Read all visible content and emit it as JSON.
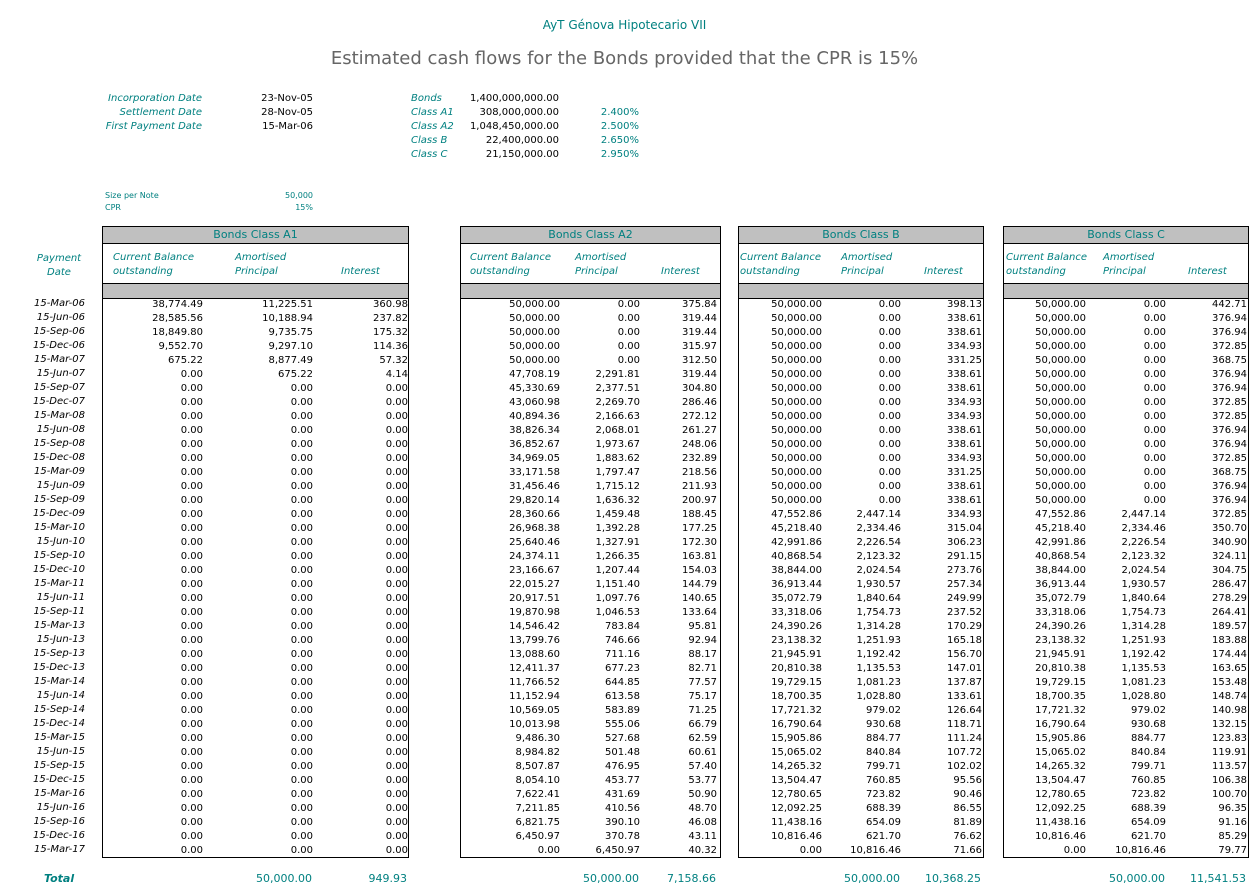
{
  "header": {
    "title": "AyT Génova Hipotecario VII",
    "subtitle": "Estimated cash flows for the Bonds provided that the CPR is 15%"
  },
  "info": {
    "dates": [
      {
        "label": "Incorporation Date",
        "value": "23-Nov-05"
      },
      {
        "label": "Settlement Date",
        "value": "28-Nov-05"
      },
      {
        "label": "First Payment Date",
        "value": "15-Mar-06"
      }
    ],
    "bonds": [
      {
        "label": "Bonds",
        "amount": "1,400,000,000.00",
        "rate": ""
      },
      {
        "label": "Class A1",
        "amount": "308,000,000.00",
        "rate": "2.400%"
      },
      {
        "label": "Class A2",
        "amount": "1,048,450,000.00",
        "rate": "2.500%"
      },
      {
        "label": "Class B",
        "amount": "22,400,000.00",
        "rate": "2.650%"
      },
      {
        "label": "Class C",
        "amount": "21,150,000.00",
        "rate": "2.950%"
      }
    ],
    "size_per_note_label": "Size per Note",
    "size_per_note": "50,000",
    "cpr_label": "CPR",
    "cpr": "15%"
  },
  "payment_date_header": [
    "Payment",
    "Date"
  ],
  "column_headers": {
    "balance": [
      "Current Balance",
      "outstanding"
    ],
    "amortised": [
      "Amortised",
      "Principal"
    ],
    "interest": "Interest"
  },
  "total_label": "Total",
  "dates": [
    "15-Mar-06",
    "15-Jun-06",
    "15-Sep-06",
    "15-Dec-06",
    "15-Mar-07",
    "15-Jun-07",
    "15-Sep-07",
    "15-Dec-07",
    "15-Mar-08",
    "15-Jun-08",
    "15-Sep-08",
    "15-Dec-08",
    "15-Mar-09",
    "15-Jun-09",
    "15-Sep-09",
    "15-Dec-09",
    "15-Mar-10",
    "15-Jun-10",
    "15-Sep-10",
    "15-Dec-10",
    "15-Mar-11",
    "15-Jun-11",
    "15-Sep-11",
    "15-Mar-13",
    "15-Jun-13",
    "15-Sep-13",
    "15-Dec-13",
    "15-Mar-14",
    "15-Jun-14",
    "15-Sep-14",
    "15-Dec-14",
    "15-Mar-15",
    "15-Jun-15",
    "15-Sep-15",
    "15-Dec-15",
    "15-Mar-16",
    "15-Jun-16",
    "15-Sep-16",
    "15-Dec-16",
    "15-Mar-17"
  ],
  "tables": [
    {
      "title": "Bonds Class A1",
      "balance": [
        "38,774.49",
        "28,585.56",
        "18,849.80",
        "9,552.70",
        "675.22",
        "0.00",
        "0.00",
        "0.00",
        "0.00",
        "0.00",
        "0.00",
        "0.00",
        "0.00",
        "0.00",
        "0.00",
        "0.00",
        "0.00",
        "0.00",
        "0.00",
        "0.00",
        "0.00",
        "0.00",
        "0.00",
        "0.00",
        "0.00",
        "0.00",
        "0.00",
        "0.00",
        "0.00",
        "0.00",
        "0.00",
        "0.00",
        "0.00",
        "0.00",
        "0.00",
        "0.00",
        "0.00",
        "0.00",
        "0.00",
        "0.00"
      ],
      "amortised": [
        "11,225.51",
        "10,188.94",
        "9,735.75",
        "9,297.10",
        "8,877.49",
        "675.22",
        "0.00",
        "0.00",
        "0.00",
        "0.00",
        "0.00",
        "0.00",
        "0.00",
        "0.00",
        "0.00",
        "0.00",
        "0.00",
        "0.00",
        "0.00",
        "0.00",
        "0.00",
        "0.00",
        "0.00",
        "0.00",
        "0.00",
        "0.00",
        "0.00",
        "0.00",
        "0.00",
        "0.00",
        "0.00",
        "0.00",
        "0.00",
        "0.00",
        "0.00",
        "0.00",
        "0.00",
        "0.00",
        "0.00",
        "0.00"
      ],
      "interest": [
        "360.98",
        "237.82",
        "175.32",
        "114.36",
        "57.32",
        "4.14",
        "0.00",
        "0.00",
        "0.00",
        "0.00",
        "0.00",
        "0.00",
        "0.00",
        "0.00",
        "0.00",
        "0.00",
        "0.00",
        "0.00",
        "0.00",
        "0.00",
        "0.00",
        "0.00",
        "0.00",
        "0.00",
        "0.00",
        "0.00",
        "0.00",
        "0.00",
        "0.00",
        "0.00",
        "0.00",
        "0.00",
        "0.00",
        "0.00",
        "0.00",
        "0.00",
        "0.00",
        "0.00",
        "0.00",
        "0.00"
      ],
      "total_amortised": "50,000.00",
      "total_interest": "949.93"
    },
    {
      "title": "Bonds Class A2",
      "balance": [
        "50,000.00",
        "50,000.00",
        "50,000.00",
        "50,000.00",
        "50,000.00",
        "47,708.19",
        "45,330.69",
        "43,060.98",
        "40,894.36",
        "38,826.34",
        "36,852.67",
        "34,969.05",
        "33,171.58",
        "31,456.46",
        "29,820.14",
        "28,360.66",
        "26,968.38",
        "25,640.46",
        "24,374.11",
        "23,166.67",
        "22,015.27",
        "20,917.51",
        "19,870.98",
        "14,546.42",
        "13,799.76",
        "13,088.60",
        "12,411.37",
        "11,766.52",
        "11,152.94",
        "10,569.05",
        "10,013.98",
        "9,486.30",
        "8,984.82",
        "8,507.87",
        "8,054.10",
        "7,622.41",
        "7,211.85",
        "6,821.75",
        "6,450.97",
        "0.00"
      ],
      "amortised": [
        "0.00",
        "0.00",
        "0.00",
        "0.00",
        "0.00",
        "2,291.81",
        "2,377.51",
        "2,269.70",
        "2,166.63",
        "2,068.01",
        "1,973.67",
        "1,883.62",
        "1,797.47",
        "1,715.12",
        "1,636.32",
        "1,459.48",
        "1,392.28",
        "1,327.91",
        "1,266.35",
        "1,207.44",
        "1,151.40",
        "1,097.76",
        "1,046.53",
        "783.84",
        "746.66",
        "711.16",
        "677.23",
        "644.85",
        "613.58",
        "583.89",
        "555.06",
        "527.68",
        "501.48",
        "476.95",
        "453.77",
        "431.69",
        "410.56",
        "390.10",
        "370.78",
        "6,450.97"
      ],
      "interest": [
        "375.84",
        "319.44",
        "319.44",
        "315.97",
        "312.50",
        "319.44",
        "304.80",
        "286.46",
        "272.12",
        "261.27",
        "248.06",
        "232.89",
        "218.56",
        "211.93",
        "200.97",
        "188.45",
        "177.25",
        "172.30",
        "163.81",
        "154.03",
        "144.79",
        "140.65",
        "133.64",
        "95.81",
        "92.94",
        "88.17",
        "82.71",
        "77.57",
        "75.17",
        "71.25",
        "66.79",
        "62.59",
        "60.61",
        "57.40",
        "53.77",
        "50.90",
        "48.70",
        "46.08",
        "43.11",
        "40.32"
      ],
      "total_amortised": "50,000.00",
      "total_interest": "7,158.66"
    },
    {
      "title": "Bonds Class B",
      "balance": [
        "50,000.00",
        "50,000.00",
        "50,000.00",
        "50,000.00",
        "50,000.00",
        "50,000.00",
        "50,000.00",
        "50,000.00",
        "50,000.00",
        "50,000.00",
        "50,000.00",
        "50,000.00",
        "50,000.00",
        "50,000.00",
        "50,000.00",
        "47,552.86",
        "45,218.40",
        "42,991.86",
        "40,868.54",
        "38,844.00",
        "36,913.44",
        "35,072.79",
        "33,318.06",
        "24,390.26",
        "23,138.32",
        "21,945.91",
        "20,810.38",
        "19,729.15",
        "18,700.35",
        "17,721.32",
        "16,790.64",
        "15,905.86",
        "15,065.02",
        "14,265.32",
        "13,504.47",
        "12,780.65",
        "12,092.25",
        "11,438.16",
        "10,816.46",
        "0.00"
      ],
      "amortised": [
        "0.00",
        "0.00",
        "0.00",
        "0.00",
        "0.00",
        "0.00",
        "0.00",
        "0.00",
        "0.00",
        "0.00",
        "0.00",
        "0.00",
        "0.00",
        "0.00",
        "0.00",
        "2,447.14",
        "2,334.46",
        "2,226.54",
        "2,123.32",
        "2,024.54",
        "1,930.57",
        "1,840.64",
        "1,754.73",
        "1,314.28",
        "1,251.93",
        "1,192.42",
        "1,135.53",
        "1,081.23",
        "1,028.80",
        "979.02",
        "930.68",
        "884.77",
        "840.84",
        "799.71",
        "760.85",
        "723.82",
        "688.39",
        "654.09",
        "621.70",
        "10,816.46"
      ],
      "interest": [
        "398.13",
        "338.61",
        "338.61",
        "334.93",
        "331.25",
        "338.61",
        "338.61",
        "334.93",
        "334.93",
        "338.61",
        "338.61",
        "334.93",
        "331.25",
        "338.61",
        "338.61",
        "334.93",
        "315.04",
        "306.23",
        "291.15",
        "273.76",
        "257.34",
        "249.99",
        "237.52",
        "170.29",
        "165.18",
        "156.70",
        "147.01",
        "137.87",
        "133.61",
        "126.64",
        "118.71",
        "111.24",
        "107.72",
        "102.02",
        "95.56",
        "90.46",
        "86.55",
        "81.89",
        "76.62",
        "71.66"
      ],
      "total_amortised": "50,000.00",
      "total_interest": "10,368.25"
    },
    {
      "title": "Bonds Class C",
      "balance": [
        "50,000.00",
        "50,000.00",
        "50,000.00",
        "50,000.00",
        "50,000.00",
        "50,000.00",
        "50,000.00",
        "50,000.00",
        "50,000.00",
        "50,000.00",
        "50,000.00",
        "50,000.00",
        "50,000.00",
        "50,000.00",
        "50,000.00",
        "47,552.86",
        "45,218.40",
        "42,991.86",
        "40,868.54",
        "38,844.00",
        "36,913.44",
        "35,072.79",
        "33,318.06",
        "24,390.26",
        "23,138.32",
        "21,945.91",
        "20,810.38",
        "19,729.15",
        "18,700.35",
        "17,721.32",
        "16,790.64",
        "15,905.86",
        "15,065.02",
        "14,265.32",
        "13,504.47",
        "12,780.65",
        "12,092.25",
        "11,438.16",
        "10,816.46",
        "0.00"
      ],
      "amortised": [
        "0.00",
        "0.00",
        "0.00",
        "0.00",
        "0.00",
        "0.00",
        "0.00",
        "0.00",
        "0.00",
        "0.00",
        "0.00",
        "0.00",
        "0.00",
        "0.00",
        "0.00",
        "2,447.14",
        "2,334.46",
        "2,226.54",
        "2,123.32",
        "2,024.54",
        "1,930.57",
        "1,840.64",
        "1,754.73",
        "1,314.28",
        "1,251.93",
        "1,192.42",
        "1,135.53",
        "1,081.23",
        "1,028.80",
        "979.02",
        "930.68",
        "884.77",
        "840.84",
        "799.71",
        "760.85",
        "723.82",
        "688.39",
        "654.09",
        "621.70",
        "10,816.46"
      ],
      "interest": [
        "442.71",
        "376.94",
        "376.94",
        "372.85",
        "368.75",
        "376.94",
        "376.94",
        "372.85",
        "372.85",
        "376.94",
        "376.94",
        "372.85",
        "368.75",
        "376.94",
        "376.94",
        "372.85",
        "350.70",
        "340.90",
        "324.11",
        "304.75",
        "286.47",
        "278.29",
        "264.41",
        "189.57",
        "183.88",
        "174.44",
        "163.65",
        "153.48",
        "148.74",
        "140.98",
        "132.15",
        "123.83",
        "119.91",
        "113.57",
        "106.38",
        "100.70",
        "96.35",
        "91.16",
        "85.29",
        "79.77"
      ],
      "total_amortised": "50,000.00",
      "total_interest": "11,541.53"
    }
  ]
}
